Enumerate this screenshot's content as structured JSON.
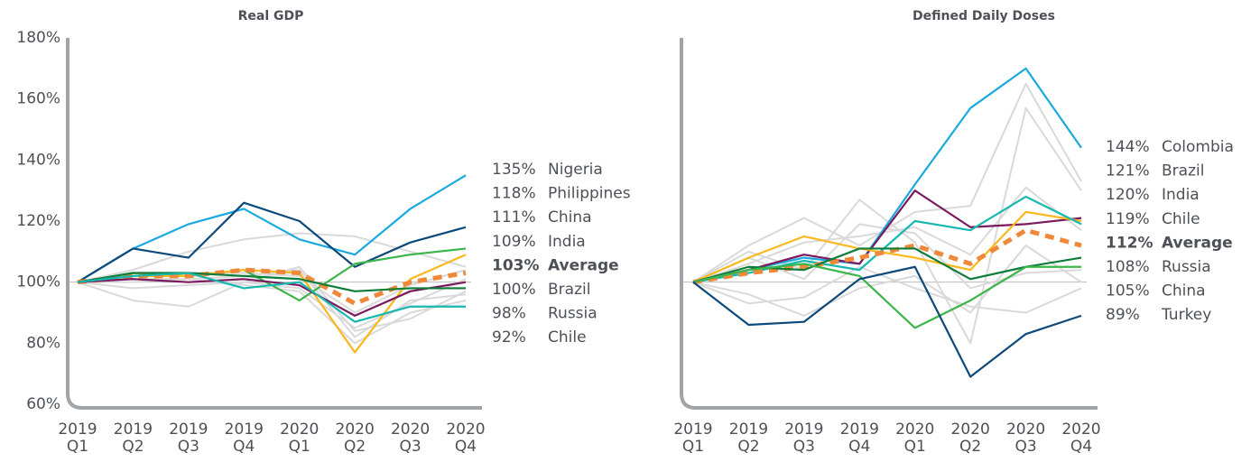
{
  "chart_data": [
    {
      "type": "line",
      "title": "Real GDP",
      "categories": [
        "2019 Q1",
        "2019 Q2",
        "2019 Q3",
        "2019 Q4",
        "2020 Q1",
        "2020 Q2",
        "2020 Q3",
        "2020 Q4"
      ],
      "ylim": [
        60,
        180
      ],
      "yticks": [
        {
          "value": 60,
          "label": "60%"
        },
        {
          "value": 80,
          "label": "80%"
        },
        {
          "value": 100,
          "label": "100%"
        },
        {
          "value": 120,
          "label": "120%"
        },
        {
          "value": 140,
          "label": "140%"
        },
        {
          "value": 160,
          "label": "160%"
        },
        {
          "value": 180,
          "label": "180%"
        }
      ],
      "reference_line": 100,
      "background_series": [
        {
          "color": "#d9d9d9",
          "values": [
            100,
            94,
            92,
            100,
            105,
            84,
            88,
            97
          ]
        },
        {
          "color": "#d9d9d9",
          "values": [
            100,
            104,
            110,
            114,
            116,
            115,
            110,
            105
          ]
        },
        {
          "color": "#d9d9d9",
          "values": [
            100,
            101,
            101,
            102,
            104,
            82,
            94,
            96
          ]
        },
        {
          "color": "#d9d9d9",
          "values": [
            100,
            98,
            99,
            100,
            98,
            85,
            93,
            101
          ]
        },
        {
          "color": "#d9d9d9",
          "values": [
            100,
            102,
            103,
            103,
            102,
            90,
            99,
            104
          ]
        },
        {
          "color": "#d9d9d9",
          "values": [
            100,
            100,
            101,
            99,
            97,
            80,
            90,
            94
          ]
        }
      ],
      "series": [
        {
          "name": "Nigeria",
          "color": "#1ba9e1",
          "values": [
            100,
            111,
            119,
            124,
            114,
            109,
            124,
            135
          ],
          "value_labels": [
            null,
            null,
            null,
            null,
            null,
            null,
            null,
            "135%"
          ]
        },
        {
          "name": "Philippines",
          "color": "#0d4a7a",
          "values": [
            100,
            111,
            108,
            126,
            120,
            105,
            113,
            118
          ],
          "value_labels": [
            null,
            null,
            null,
            null,
            null,
            null,
            null,
            "118%"
          ]
        },
        {
          "name": "China",
          "color": "#3cb54a",
          "values": [
            100,
            103,
            102,
            104,
            94,
            106,
            109,
            111
          ],
          "value_labels": [
            null,
            null,
            null,
            null,
            null,
            null,
            null,
            "111%"
          ]
        },
        {
          "name": "India",
          "color": "#fbb71c",
          "values": [
            100,
            102,
            102,
            104,
            103,
            77,
            101,
            109
          ],
          "value_labels": [
            null,
            null,
            null,
            null,
            null,
            null,
            null,
            "109%"
          ]
        },
        {
          "name": "Average",
          "color": "#f0883a",
          "dashed": true,
          "bold": true,
          "values": [
            100,
            102,
            102,
            104,
            103,
            93,
            100,
            103
          ],
          "value_labels": [
            null,
            null,
            null,
            null,
            null,
            null,
            null,
            "103%"
          ]
        },
        {
          "name": "Brazil",
          "color": "#7b1a5e",
          "values": [
            100,
            101,
            100,
            101,
            99,
            89,
            97,
            100
          ],
          "value_labels": [
            null,
            null,
            null,
            null,
            null,
            null,
            null,
            "100%"
          ]
        },
        {
          "name": "Russia",
          "color": "#0e7d3a",
          "values": [
            100,
            103,
            103,
            102,
            101,
            97,
            98,
            98
          ],
          "value_labels": [
            null,
            null,
            null,
            null,
            null,
            null,
            null,
            "98%"
          ]
        },
        {
          "name": "Chile",
          "color": "#15b8b0",
          "values": [
            100,
            102,
            103,
            98,
            100,
            87,
            92,
            92
          ],
          "value_labels": [
            null,
            null,
            null,
            null,
            null,
            null,
            null,
            "92%"
          ]
        }
      ]
    },
    {
      "type": "line",
      "title": "Defined Daily Doses",
      "categories": [
        "2019 Q1",
        "2019 Q2",
        "2019 Q3",
        "2019 Q4",
        "2020 Q1",
        "2020 Q2",
        "2020 Q3",
        "2020 Q4"
      ],
      "ylim": [
        60,
        180
      ],
      "reference_line": 100,
      "background_series": [
        {
          "color": "#d9d9d9",
          "values": [
            100,
            112,
            121,
            112,
            123,
            125,
            165,
            133
          ]
        },
        {
          "color": "#d9d9d9",
          "values": [
            100,
            110,
            104,
            127,
            113,
            80,
            157,
            130
          ]
        },
        {
          "color": "#d9d9d9",
          "values": [
            100,
            96,
            89,
            98,
            102,
            90,
            112,
            100
          ]
        },
        {
          "color": "#d9d9d9",
          "values": [
            100,
            106,
            113,
            115,
            118,
            109,
            131,
            117
          ]
        },
        {
          "color": "#d9d9d9",
          "values": [
            100,
            93,
            95,
            105,
            98,
            92,
            90,
            98
          ]
        },
        {
          "color": "#d9d9d9",
          "values": [
            100,
            108,
            101,
            119,
            116,
            98,
            103,
            104
          ]
        }
      ],
      "series": [
        {
          "name": "Colombia",
          "color": "#1ba9e1",
          "values": [
            100,
            104,
            108,
            106,
            132,
            157,
            170,
            144
          ],
          "value_labels": [
            null,
            null,
            null,
            null,
            null,
            null,
            null,
            "144%"
          ]
        },
        {
          "name": "Brazil",
          "color": "#7b1a5e",
          "values": [
            100,
            104,
            109,
            106,
            130,
            118,
            119,
            121
          ],
          "value_labels": [
            null,
            null,
            null,
            null,
            null,
            null,
            null,
            "121%"
          ]
        },
        {
          "name": "India",
          "color": "#fbb71c",
          "values": [
            100,
            108,
            115,
            111,
            108,
            104,
            123,
            120
          ],
          "value_labels": [
            null,
            null,
            null,
            null,
            null,
            null,
            null,
            "120%"
          ]
        },
        {
          "name": "Chile",
          "color": "#15b8b0",
          "values": [
            100,
            103,
            107,
            104,
            120,
            117,
            128,
            119
          ],
          "value_labels": [
            null,
            null,
            null,
            null,
            null,
            null,
            null,
            "119%"
          ]
        },
        {
          "name": "Average",
          "color": "#f0883a",
          "dashed": true,
          "bold": true,
          "values": [
            100,
            103,
            105,
            108,
            112,
            106,
            117,
            112
          ],
          "value_labels": [
            null,
            null,
            null,
            null,
            null,
            null,
            null,
            "112%"
          ]
        },
        {
          "name": "Russia",
          "color": "#0e7d3a",
          "values": [
            100,
            105,
            104,
            111,
            111,
            101,
            105,
            108
          ],
          "value_labels": [
            null,
            null,
            null,
            null,
            null,
            null,
            null,
            "108%"
          ]
        },
        {
          "name": "China",
          "color": "#3cb54a",
          "values": [
            100,
            104,
            106,
            102,
            85,
            94,
            105,
            105
          ],
          "value_labels": [
            null,
            null,
            null,
            null,
            null,
            null,
            null,
            "105%"
          ]
        },
        {
          "name": "Turkey",
          "color": "#0d4a7a",
          "values": [
            100,
            86,
            87,
            101,
            105,
            69,
            83,
            89
          ],
          "value_labels": [
            null,
            null,
            null,
            null,
            null,
            null,
            null,
            "89%"
          ]
        }
      ]
    }
  ]
}
